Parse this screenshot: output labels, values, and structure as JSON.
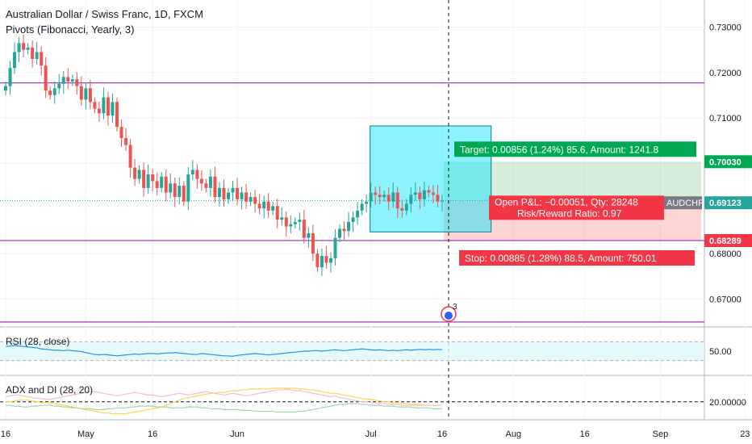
{
  "header": {
    "title": "Australian Dollar / Swiss Franc, 1D, FXCM",
    "indicator": "Pivots (Fibonacci, Yearly, 3)"
  },
  "colors": {
    "up": "#26a69a",
    "down": "#ef5350",
    "pivot": "#9c27b0",
    "target_box": "#4caf50",
    "stop_box": "#f44336",
    "position_box": "#00e5ff",
    "rsi_line": "#2196f3",
    "adx_line": "#ffd54f"
  },
  "chart_data": [
    {
      "type": "candlestick",
      "symbol": "AUDCHF",
      "ylim": [
        0.664,
        0.736
      ],
      "y_ticks": [
        "0.73000",
        "0.72000",
        "0.71000",
        "0.70000",
        "0.68000",
        "0.67000"
      ],
      "y_tick_values": [
        0.73,
        0.72,
        0.71,
        0.7,
        0.68,
        0.67
      ],
      "x_labels": [
        "16",
        "May",
        "16",
        "Jun",
        "Jul",
        "16",
        "Aug",
        "16",
        "Sep",
        "23"
      ],
      "x_label_index": [
        0,
        18,
        33,
        52,
        82,
        98,
        114,
        130,
        147,
        166
      ],
      "pivot_levels": [
        0.7177,
        0.6829,
        0.6649
      ],
      "closes": [
        0.717,
        0.721,
        0.7245,
        0.7265,
        0.725,
        0.7255,
        0.723,
        0.7245,
        0.7215,
        0.716,
        0.715,
        0.7165,
        0.7175,
        0.719,
        0.718,
        0.7185,
        0.717,
        0.714,
        0.7165,
        0.7135,
        0.712,
        0.711,
        0.7145,
        0.7105,
        0.7135,
        0.708,
        0.7055,
        0.704,
        0.699,
        0.6965,
        0.6985,
        0.6945,
        0.6975,
        0.696,
        0.6945,
        0.697,
        0.6935,
        0.6955,
        0.6925,
        0.695,
        0.6915,
        0.6975,
        0.6985,
        0.6965,
        0.6955,
        0.6945,
        0.697,
        0.6925,
        0.6945,
        0.692,
        0.6935,
        0.6945,
        0.692,
        0.6935,
        0.6915,
        0.6925,
        0.691,
        0.69,
        0.6915,
        0.6895,
        0.6905,
        0.6875,
        0.688,
        0.686,
        0.6865,
        0.687,
        0.6875,
        0.6835,
        0.6845,
        0.68,
        0.677,
        0.6795,
        0.678,
        0.679,
        0.6835,
        0.6855,
        0.685,
        0.687,
        0.688,
        0.6895,
        0.691,
        0.6915,
        0.6935,
        0.693,
        0.6925,
        0.693,
        0.6915,
        0.6935,
        0.69,
        0.6895,
        0.691,
        0.693,
        0.6935,
        0.692,
        0.694,
        0.6935,
        0.693,
        0.6915,
        0.6917
      ],
      "position": {
        "type": "long",
        "entry": 0.69174,
        "target": 0.7003,
        "stop": 0.68289,
        "symbol_label": "AUDCHF",
        "last_price": 0.69123
      },
      "price_labels": {
        "target": "0.70030",
        "entry": "0.69174",
        "last": "0.69123",
        "stop": "0.68289"
      },
      "annotations": {
        "target": "Target: 0.00856 (1.24%) 85.6, Amount: 1241.8",
        "pnl": "Open P&L: −0.00051, Qty: 28248",
        "rr": "Risk/Reward Ratio: 0.97",
        "stop": "Stop: 0.00885 (1.28%) 88.5, Amount: 750.01",
        "events_count": "3"
      }
    },
    {
      "type": "line",
      "name": "RSI (28, close)",
      "ylim": [
        0,
        100
      ],
      "y_ticks": [
        "50.00"
      ],
      "band": [
        30,
        70
      ],
      "values": [
        60,
        61,
        62,
        61,
        60,
        59,
        58,
        57,
        55,
        54,
        53,
        52,
        52,
        51,
        52,
        51,
        50,
        49,
        47,
        45,
        43,
        42,
        43,
        42,
        41,
        40,
        41,
        42,
        43,
        44,
        43,
        44,
        45,
        45,
        44,
        45,
        46,
        46,
        47,
        46,
        45,
        44,
        43,
        43,
        45,
        44,
        43,
        42,
        41,
        40,
        40,
        39,
        41,
        42,
        43,
        44,
        45,
        44,
        43,
        42,
        43,
        44,
        45,
        46,
        47,
        48,
        49,
        50,
        50,
        51,
        51,
        50,
        51,
        52,
        53,
        52,
        51,
        52,
        53,
        54,
        55,
        54,
        53,
        52,
        53,
        52,
        51,
        52,
        51,
        52,
        53,
        52,
        53,
        54,
        53,
        54,
        53,
        54,
        53
      ]
    },
    {
      "type": "line",
      "name": "ADX and DI (28, 20)",
      "ylim": [
        0,
        50
      ],
      "y_ticks": [
        "20.00000"
      ],
      "threshold": 20,
      "series": [
        {
          "values": [
            20,
            20,
            21,
            22,
            22,
            22,
            21,
            20,
            19,
            19,
            19,
            18,
            17,
            16,
            15,
            14,
            13,
            12,
            11,
            10,
            9,
            8,
            7,
            7,
            6,
            6,
            6,
            6,
            7,
            8,
            9,
            10,
            11,
            12,
            13,
            14,
            16,
            18,
            20,
            22,
            24,
            25,
            26,
            27,
            28,
            29,
            30,
            30,
            31,
            31,
            32,
            33,
            33,
            34,
            34,
            35,
            35,
            35,
            35,
            35,
            36,
            36,
            36,
            36,
            36,
            36,
            35,
            35,
            34,
            34,
            33,
            32,
            31,
            30,
            30,
            29,
            28,
            27,
            26,
            25,
            24,
            23,
            23,
            22,
            21,
            20,
            20,
            19,
            19,
            18,
            18,
            17,
            17,
            17,
            16,
            16,
            16,
            16,
            16
          ]
        },
        {
          "values": [
            26,
            27,
            28,
            28,
            27,
            26,
            25,
            24,
            24,
            23,
            23,
            24,
            25,
            26,
            27,
            28,
            29,
            30,
            31,
            32,
            32,
            31,
            30,
            29,
            28,
            27,
            28,
            29,
            30,
            31,
            30,
            29,
            28,
            28,
            27,
            26,
            27,
            28,
            29,
            30,
            29,
            28,
            29,
            30,
            31,
            32,
            31,
            30,
            29,
            28,
            29,
            30,
            29,
            28,
            27,
            28,
            29,
            30,
            31,
            32,
            33,
            34,
            34,
            35,
            34,
            33,
            33,
            32,
            31,
            30,
            29,
            28,
            27,
            26,
            27,
            25,
            24,
            23,
            22,
            21,
            20,
            20,
            19,
            19,
            18,
            18,
            17,
            17,
            17,
            16,
            16,
            16,
            16,
            16,
            16,
            16,
            16,
            16,
            16
          ]
        },
        {
          "values": [
            16,
            16,
            15,
            15,
            14,
            14,
            15,
            15,
            16,
            16,
            16,
            15,
            15,
            14,
            14,
            13,
            13,
            12,
            12,
            12,
            11,
            11,
            11,
            12,
            12,
            13,
            13,
            13,
            14,
            14,
            15,
            15,
            15,
            15,
            14,
            14,
            14,
            13,
            13,
            13,
            13,
            14,
            14,
            14,
            13,
            13,
            12,
            12,
            12,
            11,
            11,
            11,
            11,
            10,
            10,
            10,
            9,
            9,
            9,
            9,
            9,
            8,
            8,
            8,
            8,
            8,
            9,
            9,
            10,
            11,
            12,
            13,
            14,
            15,
            16,
            17,
            17,
            18,
            18,
            18,
            17,
            17,
            16,
            16,
            16,
            15,
            15,
            15,
            14,
            14,
            14,
            14,
            13,
            13,
            13,
            13,
            12,
            12,
            12
          ]
        }
      ]
    }
  ]
}
